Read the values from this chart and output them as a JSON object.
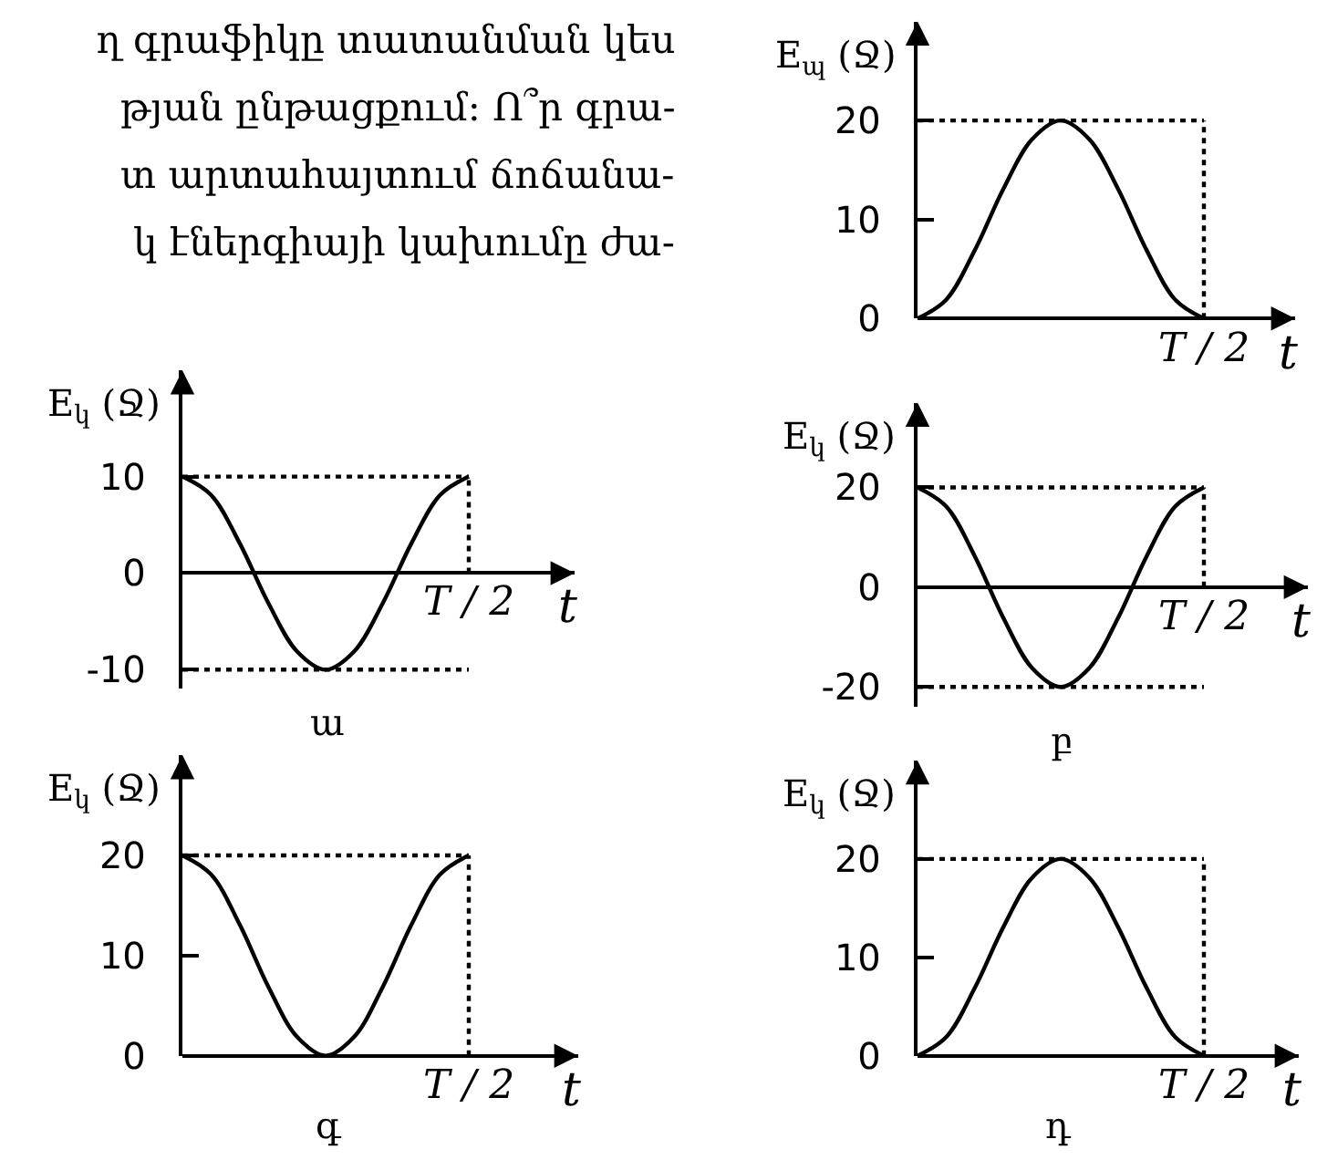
{
  "chart_data": [
    {
      "type": "other",
      "annotations": [
        "ղ գրաֆիկը տատանման կես",
        "թյան ընթացքում: Ո՞ր գրա-",
        "տ արտահայտում ճոճանա-",
        "կ էներգիայի կախումը ժա-"
      ]
    },
    {
      "type": "line",
      "xlabel": "t",
      "ylabel": "E$_{պ}$ (Ջ)",
      "categories": [
        null,
        null,
        null,
        null,
        null,
        null,
        null,
        null,
        null,
        null,
        null
      ],
      "series": [
        {
          "color": "#000000",
          "values": [
            0,
            1.9,
            6.9,
            13.1,
            18.1,
            20,
            18.1,
            13.1,
            6.9,
            1.9,
            0
          ]
        }
      ],
      "ylim": [
        0,
        30
      ],
      "yticks": [
        0,
        10,
        20
      ],
      "marker": "none",
      "line_style": "solid",
      "ref_lines": [
        {
          "axis": "y",
          "value": 20,
          "line_style": "dotted"
        },
        {
          "axis": "x",
          "label": "T / 2",
          "line_style": "dotted"
        }
      ]
    },
    {
      "type": "line",
      "xlabel": "t",
      "ylabel": "E$_{կ}$ (Ջ)",
      "annotations": [
        "ա"
      ],
      "categories": [
        null,
        null,
        null,
        null,
        null,
        null,
        null,
        null,
        null,
        null,
        null
      ],
      "series": [
        {
          "color": "#000000",
          "values": [
            10,
            8.1,
            3.1,
            -3.1,
            -8.1,
            -10,
            -8.1,
            -3.1,
            3.1,
            8.1,
            10
          ]
        }
      ],
      "ylim": [
        -12,
        21
      ],
      "yticks": [
        -10,
        0,
        10
      ],
      "marker": "none",
      "line_style": "solid",
      "ref_lines": [
        {
          "axis": "y",
          "value": 10,
          "line_style": "dotted"
        },
        {
          "axis": "y",
          "value": -10,
          "line_style": "dotted"
        },
        {
          "axis": "x",
          "label": "T / 2",
          "line_style": "dotted"
        }
      ]
    },
    {
      "type": "line",
      "xlabel": "t",
      "ylabel": "E$_{կ}$ (Ջ)",
      "annotations": [
        "բ"
      ],
      "categories": [
        null,
        null,
        null,
        null,
        null,
        null,
        null,
        null,
        null,
        null,
        null
      ],
      "series": [
        {
          "color": "#000000",
          "values": [
            20,
            16.2,
            6.2,
            -6.2,
            -16.2,
            -20,
            -16.2,
            -6.2,
            6.2,
            16.2,
            20
          ]
        }
      ],
      "ylim": [
        -24,
        37
      ],
      "yticks": [
        -20,
        0,
        20
      ],
      "marker": "none",
      "line_style": "solid",
      "ref_lines": [
        {
          "axis": "y",
          "value": 20,
          "line_style": "dotted"
        },
        {
          "axis": "y",
          "value": -20,
          "line_style": "dotted"
        },
        {
          "axis": "x",
          "label": "T / 2",
          "line_style": "dotted"
        }
      ]
    },
    {
      "type": "line",
      "xlabel": "t",
      "ylabel": "E$_{կ}$ (Ջ)",
      "annotations": [
        "գ"
      ],
      "categories": [
        null,
        null,
        null,
        null,
        null,
        null,
        null,
        null,
        null,
        null,
        null
      ],
      "series": [
        {
          "color": "#000000",
          "values": [
            20,
            18.1,
            13.1,
            6.9,
            1.9,
            0,
            1.9,
            6.9,
            13.1,
            18.1,
            20
          ]
        }
      ],
      "ylim": [
        0,
        30
      ],
      "yticks": [
        0,
        10,
        20
      ],
      "marker": "none",
      "line_style": "solid",
      "ref_lines": [
        {
          "axis": "y",
          "value": 20,
          "line_style": "dotted"
        },
        {
          "axis": "x",
          "label": "T / 2",
          "line_style": "dotted"
        }
      ]
    },
    {
      "type": "line",
      "xlabel": "t",
      "ylabel": "E$_{կ}$ (Ջ)",
      "annotations": [
        "դ"
      ],
      "categories": [
        null,
        null,
        null,
        null,
        null,
        null,
        null,
        null,
        null,
        null,
        null
      ],
      "series": [
        {
          "color": "#000000",
          "values": [
            0,
            1.9,
            6.9,
            13.1,
            18.1,
            20,
            18.1,
            13.1,
            6.9,
            1.9,
            0
          ]
        }
      ],
      "ylim": [
        0,
        30
      ],
      "yticks": [
        0,
        10,
        20
      ],
      "marker": "none",
      "line_style": "solid",
      "ref_lines": [
        {
          "axis": "y",
          "value": 20,
          "line_style": "dotted"
        },
        {
          "axis": "x",
          "label": "T / 2",
          "line_style": "dotted"
        }
      ]
    }
  ]
}
